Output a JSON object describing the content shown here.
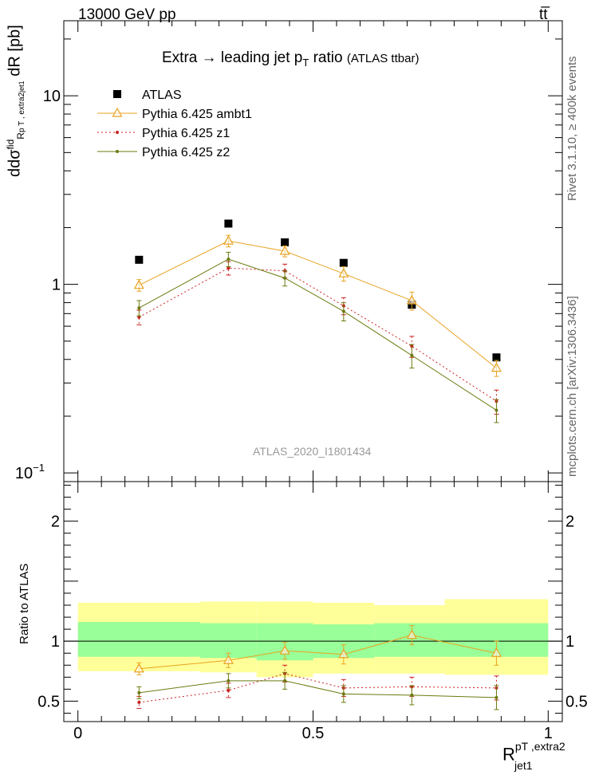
{
  "header": {
    "energy_label": "13000 GeV pp",
    "process_label": "tt̅"
  },
  "side_labels": {
    "rivet": "Rivet 3.1.10, ≥ 400k events",
    "mcplots": "mcplots.cern.ch [arXiv:1306.3436]"
  },
  "chart_data": [
    {
      "panel": "main",
      "type": "scatter",
      "title": "Extra → leading jet p",
      "title_sub": "T",
      "title_tail": " ratio",
      "title_small": "(ATLAS ttbar)",
      "ylabel": "dσ/dR [pb]",
      "ylabel_parts": {
        "d": "d",
        "sigma": "dσ",
        "sigma_sup": "fid",
        "sub": "R",
        "sub2": "p T , extra2",
        "sub3": "jet1",
        "den": "dR",
        "unit": "[pb]"
      },
      "yscale": "log",
      "ylim": [
        0.09,
        25
      ],
      "xlim": [
        -0.03,
        1.03
      ],
      "yticks": [
        {
          "v": 0.1,
          "label": "10",
          "sup": "−1"
        },
        {
          "v": 1,
          "label": "1",
          "sup": ""
        },
        {
          "v": 10,
          "label": "10",
          "sup": ""
        }
      ],
      "watermark": "ATLAS_2020_I1801434",
      "legend": [
        "ATLAS",
        "Pythia 6.425 ambt1",
        "Pythia 6.425 z1",
        "Pythia 6.425 z2"
      ],
      "series": [
        {
          "name": "ATLAS",
          "color": "#000000",
          "marker": "square",
          "x": [
            0.13,
            0.32,
            0.44,
            0.565,
            0.71,
            0.89
          ],
          "y": [
            1.35,
            2.1,
            1.67,
            1.3,
            0.78,
            0.41
          ],
          "yerr": [
            0,
            0,
            0,
            0,
            0,
            0
          ]
        },
        {
          "name": "Pythia 6.425 ambt1",
          "color": "#E8A320",
          "marker": "triangle",
          "dash": "",
          "x": [
            0.13,
            0.32,
            0.44,
            0.565,
            0.71,
            0.89
          ],
          "y": [
            0.99,
            1.7,
            1.5,
            1.14,
            0.82,
            0.36
          ],
          "yerr": [
            0.07,
            0.12,
            0.1,
            0.1,
            0.09,
            0.035
          ]
        },
        {
          "name": "Pythia 6.425 z1",
          "color": "#CC2020",
          "marker": "dot",
          "dash": "2,3",
          "x": [
            0.13,
            0.32,
            0.44,
            0.565,
            0.71,
            0.89
          ],
          "y": [
            0.67,
            1.22,
            1.18,
            0.77,
            0.47,
            0.24
          ],
          "yerr": [
            0.06,
            0.1,
            0.1,
            0.08,
            0.06,
            0.035
          ]
        },
        {
          "name": "Pythia 6.425 z2",
          "color": "#6B7A0F",
          "marker": "dot",
          "dash": "",
          "x": [
            0.13,
            0.32,
            0.44,
            0.565,
            0.71,
            0.89
          ],
          "y": [
            0.75,
            1.36,
            1.08,
            0.72,
            0.42,
            0.215
          ],
          "yerr": [
            0.07,
            0.12,
            0.1,
            0.08,
            0.06,
            0.03
          ]
        }
      ]
    },
    {
      "panel": "ratio",
      "type": "line",
      "ylabel": "Ratio to ATLAS",
      "xlabel": "R",
      "xlabel_sup": "pT ,extra2",
      "xlabel_sub": "jet1",
      "ylim": [
        0.33,
        2.33
      ],
      "xlim": [
        -0.03,
        1.03
      ],
      "xticks": [
        {
          "v": 0,
          "label": "0"
        },
        {
          "v": 0.5,
          "label": "0.5"
        },
        {
          "v": 1,
          "label": "1"
        }
      ],
      "yticks": [
        {
          "v": 0.5,
          "label": "0.5"
        },
        {
          "v": 1,
          "label": "1"
        },
        {
          "v": 2,
          "label": "2"
        }
      ],
      "bands": {
        "edges": [
          0,
          0.26,
          0.38,
          0.5,
          0.63,
          0.78,
          1.0
        ],
        "outer": [
          [
            0.75,
            1.32
          ],
          [
            0.74,
            1.33
          ],
          [
            0.7,
            1.33
          ],
          [
            0.73,
            1.32
          ],
          [
            0.73,
            1.3
          ],
          [
            0.72,
            1.35
          ]
        ],
        "inner": [
          [
            0.87,
            1.16
          ],
          [
            0.86,
            1.15
          ],
          [
            0.84,
            1.15
          ],
          [
            0.86,
            1.14
          ],
          [
            0.87,
            1.15
          ],
          [
            0.87,
            1.15
          ]
        ],
        "outer_color": "#FFFF99",
        "inner_color": "#99FF99"
      },
      "series": [
        {
          "name": "Pythia 6.425 ambt1",
          "color": "#E8A320",
          "marker": "triangle",
          "dash": "",
          "x": [
            0.13,
            0.32,
            0.44,
            0.565,
            0.71,
            0.89
          ],
          "y": [
            0.77,
            0.84,
            0.92,
            0.89,
            1.05,
            0.9
          ],
          "yerr": [
            0.05,
            0.06,
            0.07,
            0.08,
            0.08,
            0.1
          ]
        },
        {
          "name": "Pythia 6.425 z1",
          "color": "#CC2020",
          "marker": "dot",
          "dash": "2,3",
          "x": [
            0.13,
            0.32,
            0.44,
            0.565,
            0.71,
            0.89
          ],
          "y": [
            0.49,
            0.59,
            0.73,
            0.61,
            0.62,
            0.61
          ],
          "yerr": [
            0.05,
            0.06,
            0.07,
            0.07,
            0.08,
            0.1
          ]
        },
        {
          "name": "Pythia 6.425 z2",
          "color": "#6B7A0F",
          "marker": "dot",
          "dash": "",
          "x": [
            0.13,
            0.32,
            0.44,
            0.565,
            0.71,
            0.89
          ],
          "y": [
            0.57,
            0.67,
            0.67,
            0.56,
            0.55,
            0.53
          ],
          "yerr": [
            0.05,
            0.06,
            0.07,
            0.07,
            0.08,
            0.1
          ]
        }
      ]
    }
  ]
}
